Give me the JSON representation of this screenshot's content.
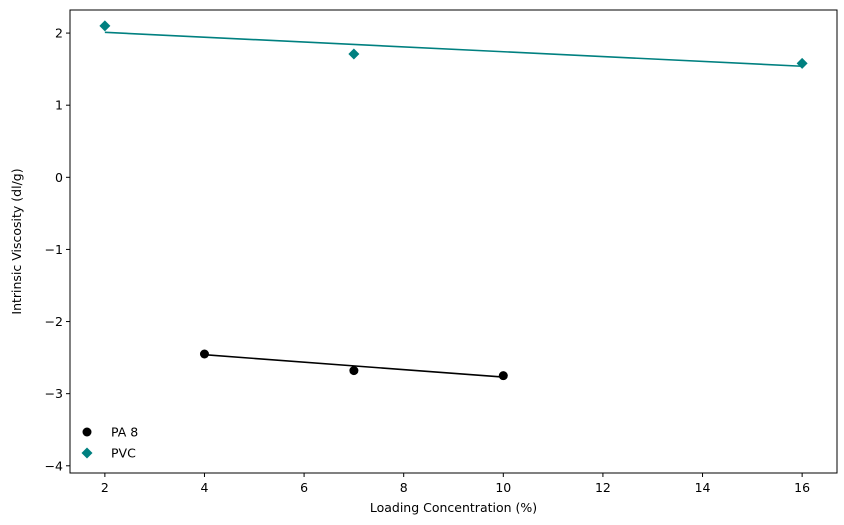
{
  "chart_data": {
    "type": "scatter",
    "title": "",
    "xlabel": "Loading Concentration (%)",
    "ylabel": "Intrinsic Viscosity (dl/g)",
    "xlim": [
      1.3,
      16.7
    ],
    "ylim": [
      -4.1,
      2.32
    ],
    "x_ticks": [
      2,
      4,
      6,
      8,
      10,
      12,
      14,
      16
    ],
    "y_ticks": [
      -4,
      -3,
      -2,
      -1,
      0,
      1,
      2
    ],
    "x_tick_labels": [
      "2",
      "4",
      "6",
      "8",
      "10",
      "12",
      "14",
      "16"
    ],
    "y_tick_labels": [
      "−4",
      "−3",
      "−2",
      "−1",
      "0",
      "1",
      "2"
    ],
    "grid": false,
    "legend_position": "lower-left",
    "series": [
      {
        "name": "PA 8",
        "marker": "circle",
        "color": "#000000",
        "x": [
          4,
          7,
          10
        ],
        "y": [
          -2.45,
          -2.68,
          -2.75
        ],
        "fit_line": {
          "x": [
            4,
            10
          ],
          "y": [
            -2.46,
            -2.77
          ]
        }
      },
      {
        "name": "PVC",
        "marker": "diamond",
        "color": "#008080",
        "x": [
          2,
          7,
          16
        ],
        "y": [
          2.1,
          1.71,
          1.58
        ],
        "fit_line": {
          "x": [
            2,
            16
          ],
          "y": [
            2.01,
            1.54
          ]
        }
      }
    ]
  }
}
